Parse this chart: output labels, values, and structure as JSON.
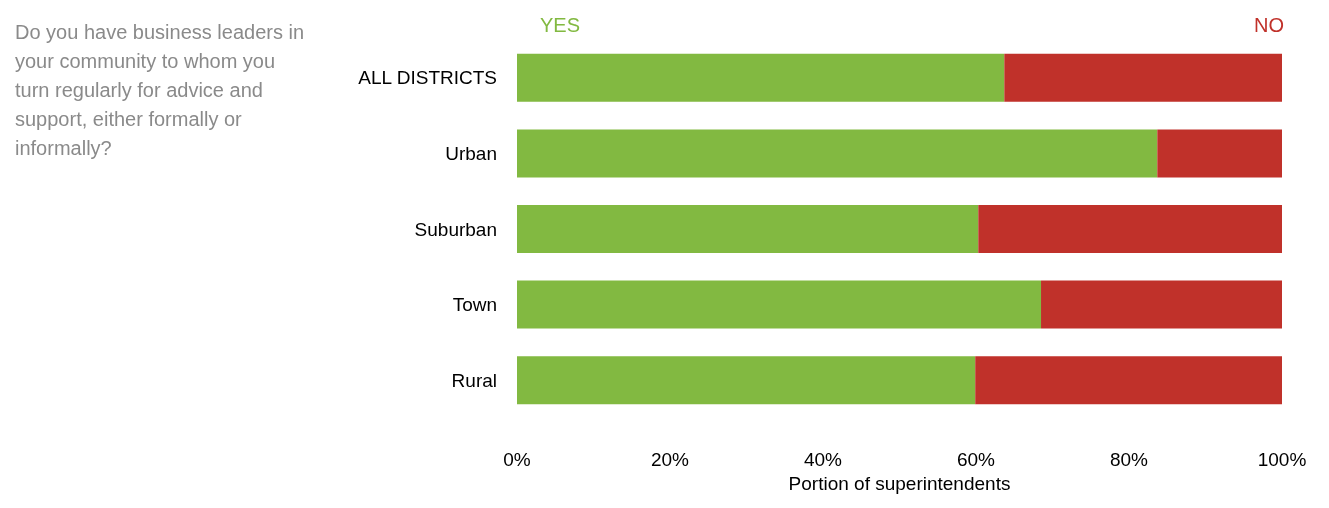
{
  "chart_data": {
    "type": "bar",
    "orientation": "horizontal",
    "stacked": true,
    "title": "Do you have business leaders in your community to whom you turn regularly for advice and support, either formally or informally?",
    "xlabel": "Portion of superintendents",
    "categories": [
      "ALL DISTRICTS",
      "Urban",
      "Suburban",
      "Town",
      "Rural"
    ],
    "series": [
      {
        "name": "YES",
        "color": "#82b941",
        "values": [
          63.7,
          83.7,
          60.3,
          68.5,
          59.9
        ]
      },
      {
        "name": "NO",
        "color": "#c0312a",
        "values": [
          36.3,
          16.3,
          39.7,
          31.5,
          40.1
        ]
      }
    ],
    "xlim": [
      0,
      100
    ],
    "xticks": [
      {
        "value": 0,
        "label": "0%"
      },
      {
        "value": 20,
        "label": "20%"
      },
      {
        "value": 40,
        "label": "40%"
      },
      {
        "value": 60,
        "label": "60%"
      },
      {
        "value": 80,
        "label": "80%"
      },
      {
        "value": 100,
        "label": "100%"
      }
    ],
    "grid": false,
    "legend": "top"
  }
}
